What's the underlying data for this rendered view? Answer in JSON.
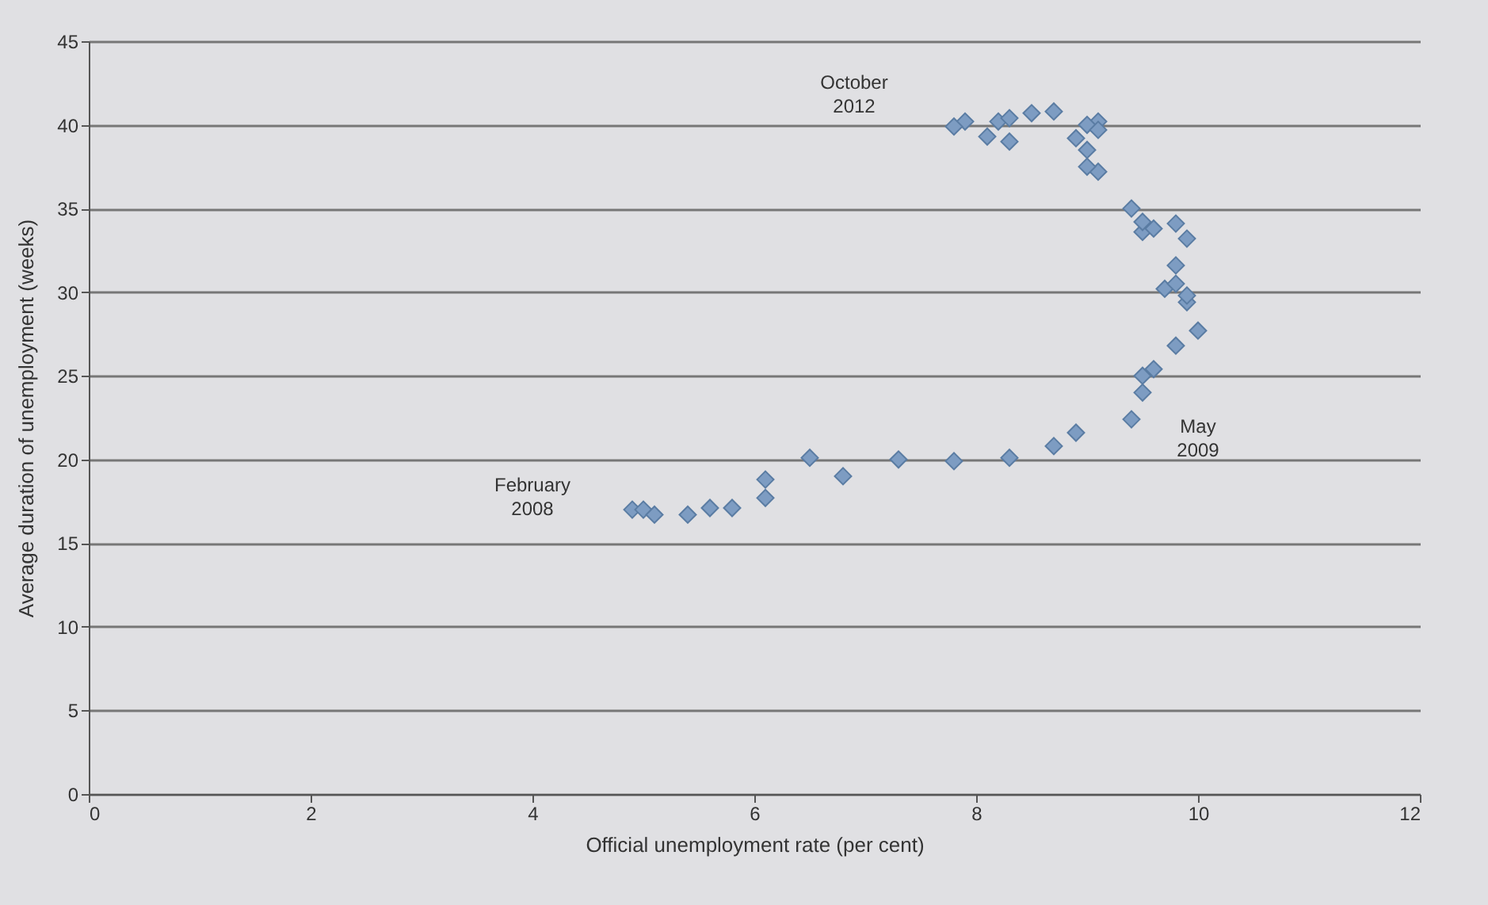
{
  "chart_data": {
    "type": "scatter",
    "xlabel": "Official unemployment rate (per cent)",
    "ylabel": "Average duration of unemployment (weeks)",
    "x": [
      4.9,
      5.0,
      5.1,
      5.4,
      5.6,
      5.8,
      6.1,
      6.1,
      6.5,
      6.8,
      7.3,
      7.8,
      8.3,
      8.7,
      8.9,
      9.4,
      9.5,
      9.5,
      9.6,
      9.8,
      10.0,
      9.9,
      9.9,
      9.7,
      9.8,
      9.8,
      9.9,
      9.8,
      9.6,
      9.5,
      9.5,
      9.4,
      9.6,
      9.1,
      9.0,
      9.0,
      8.9,
      9.1,
      9.0,
      9.1,
      8.7,
      8.5,
      8.3,
      8.2,
      8.3,
      8.1,
      7.9,
      7.8
    ],
    "series": [
      {
        "color": "#7d9cc2",
        "values": [
          17.0,
          17.0,
          16.7,
          16.7,
          17.1,
          17.1,
          17.7,
          18.8,
          20.1,
          19.0,
          20.0,
          19.9,
          20.1,
          20.8,
          21.6,
          22.4,
          24.0,
          25.0,
          25.4,
          26.8,
          27.7,
          29.4,
          29.8,
          30.2,
          30.5,
          31.6,
          33.2,
          34.1,
          null,
          33.6,
          34.2,
          35.0,
          33.8,
          37.2,
          37.5,
          38.5,
          39.2,
          40.2,
          40.0,
          39.7,
          40.8,
          40.7,
          39.0,
          40.2,
          40.4,
          39.3,
          40.2,
          39.9
        ]
      }
    ],
    "marker": "diamond",
    "grid": "y",
    "xlim": [
      0,
      12
    ],
    "ylim": [
      0,
      45
    ],
    "xticks": [
      0,
      2,
      4,
      6,
      8,
      10,
      12
    ],
    "yticks": [
      0,
      5,
      10,
      15,
      20,
      25,
      30,
      35,
      40,
      45
    ],
    "annotations": [
      "October\n2012",
      "May\n2009",
      "February\n2008"
    ]
  }
}
